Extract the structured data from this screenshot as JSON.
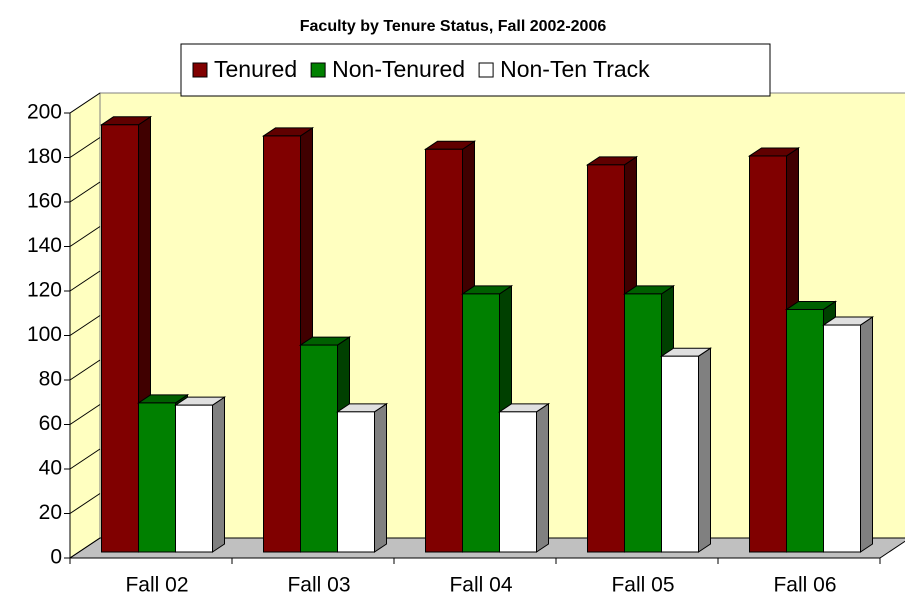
{
  "chart_data": {
    "type": "bar3d",
    "title": "Faculty by Tenure Status, Fall 2002-2006",
    "categories": [
      "Fall 02",
      "Fall 03",
      "Fall 04",
      "Fall 05",
      "Fall 06"
    ],
    "series": [
      {
        "name": "Tenured",
        "color": "#800000",
        "values": [
          192,
          187,
          181,
          174,
          178
        ]
      },
      {
        "name": "Non-Tenured",
        "color": "#008000",
        "values": [
          67,
          93,
          116,
          116,
          109
        ]
      },
      {
        "name": "Non-Ten Track",
        "color": "#ffffff",
        "values": [
          66,
          63,
          63,
          88,
          102
        ]
      }
    ],
    "ylim": [
      0,
      200
    ],
    "yticks": [
      0,
      20,
      40,
      60,
      80,
      100,
      120,
      140,
      160,
      180,
      200
    ],
    "legend": "top"
  }
}
